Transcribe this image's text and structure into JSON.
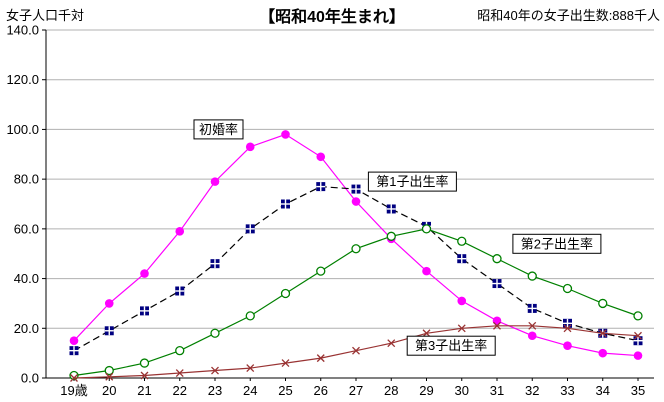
{
  "chart_data": {
    "type": "line",
    "title": "【昭和40年生まれ】",
    "subtitle_right": "昭和40年の女子出生数:888千人",
    "y_unit_label": "女子人口千対",
    "xlabel": "",
    "ylabel": "女子人口千対",
    "ylim": [
      0,
      140
    ],
    "y_tick_step": 20,
    "y_ticks": [
      "0.0",
      "20.0",
      "40.0",
      "60.0",
      "80.0",
      "100.0",
      "120.0",
      "140.0"
    ],
    "grid": "horizontal",
    "legend_position": "none",
    "categories": [
      "19歳",
      "20",
      "21",
      "22",
      "23",
      "24",
      "25",
      "26",
      "27",
      "28",
      "29",
      "30",
      "31",
      "32",
      "33",
      "34",
      "35"
    ],
    "series": [
      {
        "id": "first-marriage",
        "name": "初婚率",
        "color": "#ff00ff",
        "line": "solid",
        "marker": "circle",
        "values": [
          15,
          30,
          42,
          59,
          79,
          93,
          98,
          89,
          71,
          56,
          43,
          31,
          23,
          17,
          13,
          10,
          9
        ]
      },
      {
        "id": "first-child-birth-rate",
        "name": "第1子出生率",
        "color": "#000000",
        "marker_color": "#000080",
        "line": "dashed",
        "marker": "square-plus",
        "values": [
          11,
          19,
          27,
          35,
          46,
          60,
          70,
          77,
          76,
          68,
          61,
          48,
          38,
          28,
          22,
          18,
          15
        ]
      },
      {
        "id": "second-child-birth-rate",
        "name": "第2子出生率",
        "color": "#008000",
        "line": "solid",
        "marker": "circle-open",
        "values": [
          1,
          3,
          6,
          11,
          18,
          25,
          34,
          43,
          52,
          57,
          60,
          55,
          48,
          41,
          36,
          30,
          25
        ]
      },
      {
        "id": "third-child-birth-rate",
        "name": "第3子出生率",
        "color": "#993333",
        "line": "solid",
        "marker": "x-cross",
        "values": [
          0,
          0.5,
          1,
          2,
          3,
          4,
          6,
          8,
          11,
          14,
          18,
          20,
          21,
          21,
          20,
          18,
          17
        ]
      }
    ],
    "annotations": [
      {
        "text": "初婚率",
        "age": 23.1,
        "value": 100,
        "box": true
      },
      {
        "text": "第1子出生率",
        "age": 28.6,
        "value": 79,
        "box": true
      },
      {
        "text": "第2子出生率",
        "age": 32.7,
        "value": 54,
        "box": true
      },
      {
        "text": "第3子出生率",
        "age": 29.7,
        "value": 13,
        "box": true
      }
    ]
  }
}
